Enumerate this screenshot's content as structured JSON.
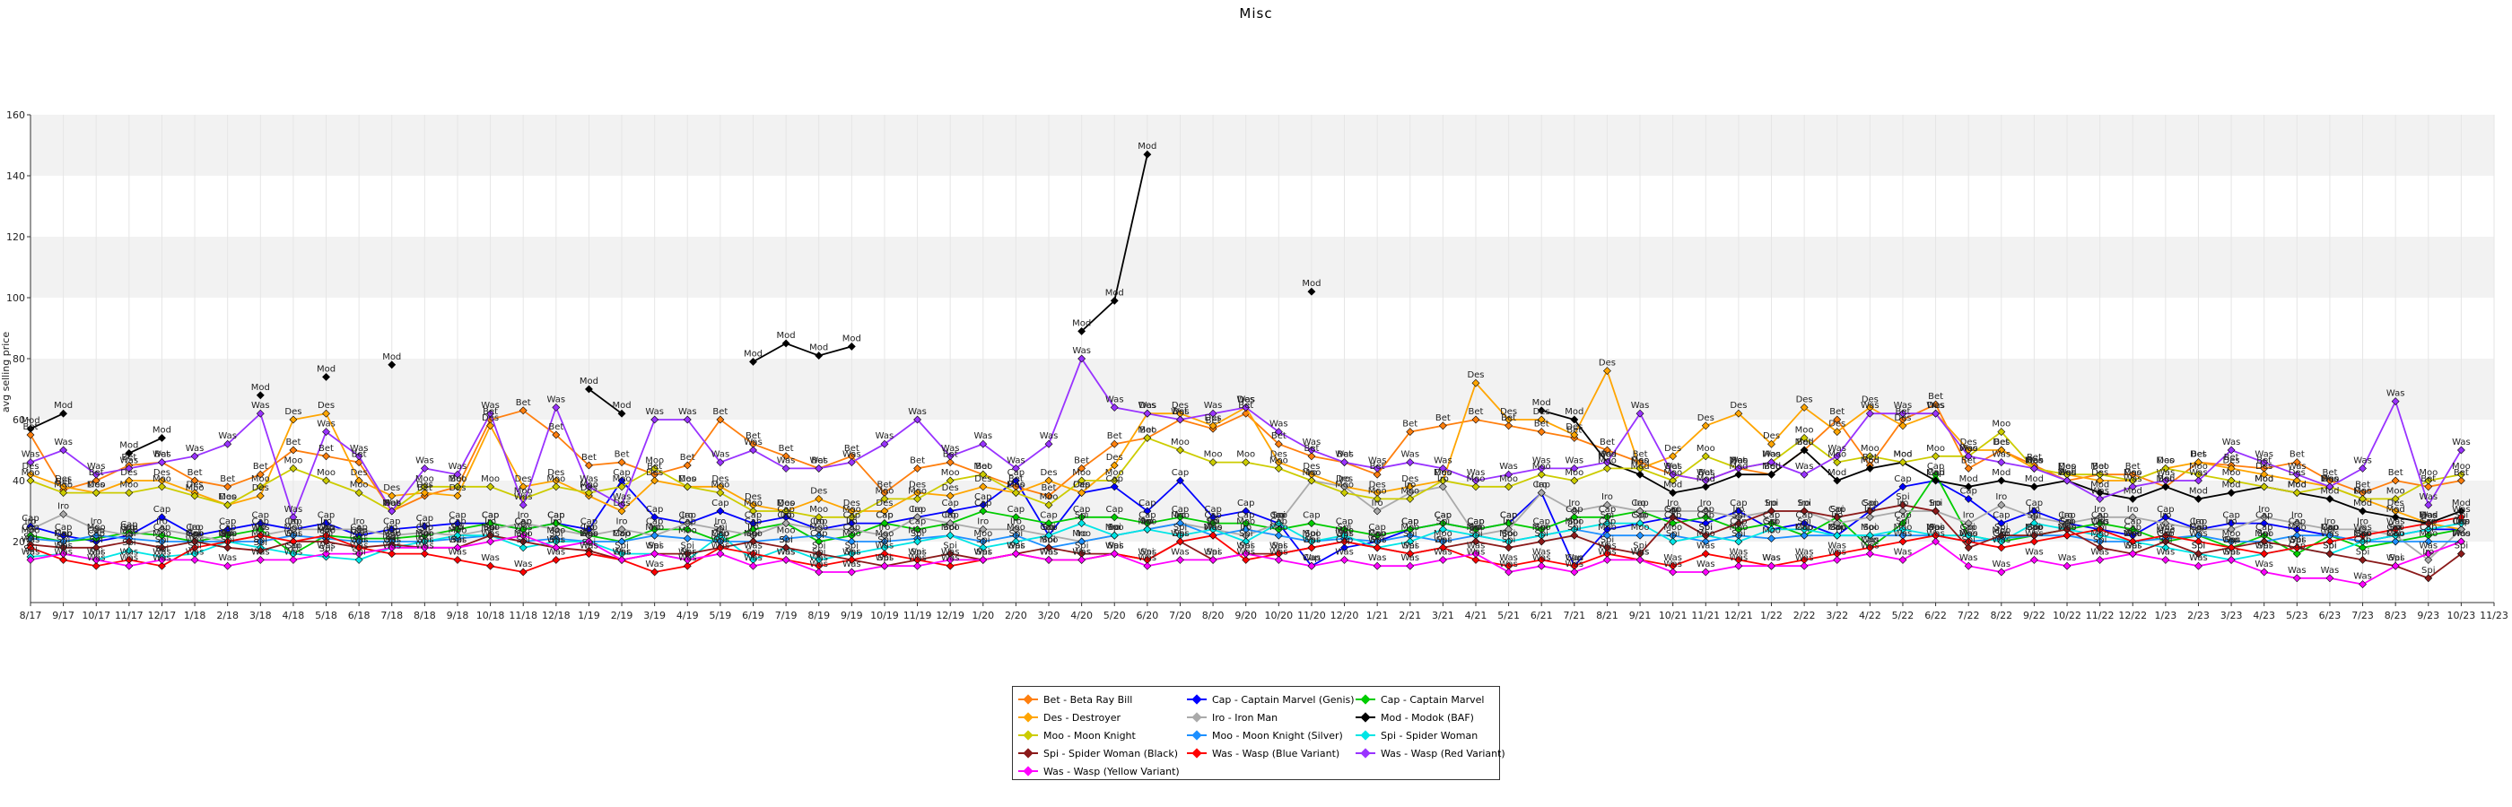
{
  "chart_data": {
    "type": "line",
    "title": "Misc",
    "xlabel": "",
    "ylabel": "avg selling price",
    "ylim": [
      0,
      160
    ],
    "yticks": [
      20,
      40,
      60,
      80,
      100,
      120,
      140,
      160
    ],
    "grid": true,
    "legend_position": "bottom-center",
    "categories": [
      "8/17",
      "9/17",
      "10/17",
      "11/17",
      "12/17",
      "1/18",
      "2/18",
      "3/18",
      "4/18",
      "5/18",
      "6/18",
      "7/18",
      "8/18",
      "9/18",
      "10/18",
      "11/18",
      "12/18",
      "1/19",
      "2/19",
      "3/19",
      "4/19",
      "5/19",
      "6/19",
      "7/19",
      "8/19",
      "9/19",
      "10/19",
      "11/19",
      "12/19",
      "1/20",
      "2/20",
      "3/20",
      "4/20",
      "5/20",
      "6/20",
      "7/20",
      "8/20",
      "9/20",
      "10/20",
      "11/20",
      "12/20",
      "1/21",
      "2/21",
      "3/21",
      "4/21",
      "5/21",
      "6/21",
      "7/21",
      "8/21",
      "9/21",
      "10/21",
      "11/21",
      "12/21",
      "1/22",
      "2/22",
      "3/22",
      "4/22",
      "5/22",
      "6/22",
      "7/22",
      "8/22",
      "9/22",
      "10/22",
      "11/22",
      "12/22",
      "1/23",
      "2/23",
      "3/23",
      "4/23",
      "5/23",
      "6/23",
      "7/23",
      "8/23",
      "9/23",
      "10/23",
      "11/23"
    ],
    "series": [
      {
        "name": "Bet - Beta Ray Bill",
        "code": "Bet",
        "color": "#ff7f0e",
        "values": [
          55,
          37,
          40,
          45,
          46,
          40,
          38,
          42,
          50,
          48,
          46,
          30,
          35,
          38,
          60,
          63,
          55,
          45,
          46,
          42,
          45,
          60,
          52,
          48,
          44,
          48,
          36,
          44,
          46,
          42,
          38,
          35,
          44,
          52,
          54,
          60,
          57,
          62,
          52,
          48,
          46,
          42,
          56,
          58,
          60,
          58,
          56,
          54,
          50,
          46,
          42,
          40,
          44,
          42,
          50,
          60,
          45,
          60,
          65,
          44,
          50,
          45,
          40,
          42,
          42,
          38,
          46,
          45,
          44,
          46,
          40,
          36,
          40,
          38,
          40,
          null
        ]
      },
      {
        "name": "Cap - Captain Marvel (Genis)",
        "code": "Cap",
        "color": "#0000ff",
        "values": [
          25,
          22,
          20,
          22,
          28,
          22,
          24,
          26,
          24,
          26,
          22,
          24,
          25,
          26,
          26,
          24,
          26,
          24,
          40,
          28,
          26,
          30,
          26,
          28,
          24,
          26,
          26,
          28,
          30,
          32,
          40,
          22,
          36,
          38,
          30,
          40,
          28,
          30,
          26,
          12,
          18,
          20,
          24,
          26,
          24,
          26,
          36,
          12,
          24,
          26,
          28,
          26,
          30,
          24,
          26,
          22,
          30,
          38,
          40,
          34,
          26,
          30,
          26,
          24,
          22,
          28,
          24,
          26,
          26,
          24,
          22,
          20,
          22,
          24,
          24,
          null
        ]
      },
      {
        "name": "Cap - Captain Marvel",
        "code": "Cap",
        "color": "#00cc00",
        "values": [
          22,
          20,
          21,
          23,
          22,
          20,
          22,
          24,
          16,
          22,
          21,
          21,
          22,
          24,
          26,
          24,
          26,
          22,
          20,
          24,
          24,
          20,
          24,
          26,
          20,
          22,
          26,
          24,
          26,
          30,
          28,
          26,
          28,
          28,
          26,
          28,
          26,
          26,
          24,
          26,
          24,
          22,
          24,
          26,
          24,
          26,
          24,
          28,
          28,
          30,
          26,
          28,
          24,
          26,
          22,
          28,
          18,
          26,
          42,
          22,
          20,
          22,
          24,
          26,
          24,
          20,
          22,
          18,
          22,
          16,
          22,
          18,
          20,
          22,
          24,
          null
        ]
      },
      {
        "name": "Des - Destroyer",
        "code": "Des",
        "color": "#ffa500",
        "values": [
          42,
          38,
          36,
          40,
          40,
          36,
          32,
          35,
          60,
          62,
          40,
          35,
          36,
          35,
          58,
          38,
          40,
          35,
          30,
          40,
          38,
          38,
          32,
          30,
          34,
          30,
          30,
          36,
          35,
          38,
          36,
          40,
          36,
          45,
          62,
          62,
          58,
          64,
          46,
          42,
          38,
          36,
          38,
          40,
          72,
          60,
          60,
          55,
          76,
          44,
          48,
          58,
          62,
          52,
          64,
          56,
          64,
          58,
          62,
          50,
          50,
          44,
          42,
          40,
          40,
          44,
          46,
          44,
          42,
          40,
          38,
          34,
          30,
          26,
          24,
          null
        ]
      },
      {
        "name": "Iro - Iron Man",
        "code": "Iro",
        "color": "#aaaaaa",
        "values": [
          24,
          29,
          24,
          22,
          24,
          22,
          20,
          22,
          24,
          24,
          24,
          22,
          23,
          22,
          24,
          26,
          24,
          22,
          24,
          22,
          26,
          24,
          22,
          26,
          24,
          24,
          22,
          28,
          26,
          24,
          24,
          22,
          20,
          22,
          24,
          26,
          24,
          22,
          26,
          40,
          38,
          30,
          36,
          38,
          22,
          24,
          36,
          30,
          32,
          30,
          30,
          30,
          28,
          30,
          30,
          26,
          28,
          30,
          30,
          26,
          32,
          28,
          26,
          28,
          28,
          26,
          24,
          24,
          28,
          26,
          24,
          24,
          22,
          14,
          24,
          null
        ]
      },
      {
        "name": "Mod - Modok (BAF)",
        "code": "Mod",
        "color": "#000000",
        "values": [
          57,
          62,
          null,
          49,
          54,
          null,
          null,
          68,
          null,
          74,
          null,
          78,
          null,
          null,
          null,
          null,
          null,
          70,
          62,
          null,
          null,
          null,
          79,
          85,
          81,
          84,
          null,
          null,
          null,
          null,
          null,
          null,
          89,
          99,
          147,
          null,
          null,
          null,
          null,
          102,
          null,
          null,
          null,
          null,
          null,
          null,
          63,
          60,
          46,
          42,
          36,
          38,
          42,
          42,
          50,
          40,
          44,
          46,
          40,
          38,
          40,
          38,
          40,
          36,
          34,
          38,
          34,
          36,
          38,
          36,
          34,
          30,
          28,
          26,
          30,
          null
        ]
      },
      {
        "name": "Moo - Moon Knight",
        "code": "Moo",
        "color": "#cccc00",
        "values": [
          40,
          36,
          36,
          36,
          38,
          35,
          32,
          38,
          44,
          40,
          36,
          30,
          38,
          38,
          38,
          34,
          38,
          36,
          38,
          44,
          38,
          36,
          30,
          30,
          28,
          28,
          34,
          34,
          40,
          42,
          36,
          32,
          40,
          40,
          54,
          50,
          46,
          46,
          44,
          40,
          36,
          34,
          34,
          40,
          38,
          38,
          42,
          40,
          44,
          44,
          40,
          48,
          44,
          46,
          54,
          46,
          48,
          46,
          48,
          48,
          56,
          44,
          42,
          42,
          40,
          44,
          42,
          40,
          38,
          36,
          38,
          34,
          34,
          40,
          42,
          null
        ]
      },
      {
        "name": "Moo - Moon Knight (Silver)",
        "code": "Moo",
        "color": "#1e90ff",
        "values": [
          21,
          20,
          22,
          21,
          20,
          20,
          20,
          20,
          22,
          21,
          20,
          20,
          20,
          21,
          22,
          20,
          21,
          20,
          20,
          22,
          21,
          20,
          20,
          21,
          22,
          20,
          20,
          21,
          22,
          20,
          22,
          18,
          20,
          22,
          24,
          26,
          22,
          24,
          22,
          20,
          21,
          20,
          22,
          20,
          22,
          20,
          22,
          24,
          22,
          22,
          22,
          20,
          22,
          21,
          22,
          22,
          22,
          22,
          22,
          20,
          21,
          22,
          22,
          20,
          20,
          21,
          22,
          20,
          20,
          22,
          22,
          20,
          20,
          20,
          20,
          null
        ]
      },
      {
        "name": "Spi - Spider Woman",
        "code": "Spi",
        "color": "#00e5e5",
        "values": [
          15,
          16,
          14,
          17,
          15,
          16,
          20,
          18,
          16,
          15,
          14,
          18,
          20,
          22,
          22,
          18,
          20,
          20,
          16,
          16,
          14,
          22,
          14,
          18,
          14,
          16,
          18,
          20,
          22,
          18,
          20,
          22,
          26,
          22,
          24,
          22,
          24,
          20,
          26,
          20,
          22,
          18,
          20,
          24,
          22,
          20,
          22,
          24,
          26,
          26,
          20,
          22,
          20,
          24,
          24,
          22,
          22,
          24,
          22,
          22,
          20,
          26,
          24,
          22,
          20,
          18,
          16,
          14,
          16,
          18,
          16,
          20,
          22,
          24,
          26,
          null
        ]
      },
      {
        "name": "Spi - Spider Woman (Black)",
        "code": "Spi",
        "color": "#8b1a1a",
        "values": [
          19,
          18,
          18,
          20,
          18,
          20,
          18,
          17,
          20,
          20,
          18,
          19,
          18,
          18,
          22,
          20,
          18,
          17,
          14,
          16,
          16,
          18,
          20,
          18,
          16,
          14,
          12,
          14,
          16,
          14,
          16,
          18,
          16,
          16,
          14,
          20,
          14,
          16,
          16,
          18,
          20,
          18,
          16,
          18,
          20,
          18,
          20,
          22,
          18,
          16,
          28,
          22,
          26,
          30,
          30,
          28,
          30,
          32,
          30,
          18,
          22,
          22,
          24,
          18,
          16,
          20,
          16,
          18,
          20,
          18,
          16,
          14,
          12,
          8,
          16,
          null
        ]
      },
      {
        "name": "Was - Wasp (Blue Variant)",
        "code": "Was",
        "color": "#ff0000",
        "values": [
          18,
          14,
          12,
          14,
          12,
          18,
          20,
          22,
          20,
          22,
          18,
          16,
          16,
          14,
          12,
          10,
          14,
          16,
          14,
          10,
          12,
          18,
          16,
          14,
          12,
          14,
          16,
          14,
          12,
          14,
          16,
          14,
          14,
          16,
          14,
          20,
          22,
          14,
          16,
          18,
          20,
          18,
          16,
          18,
          14,
          12,
          14,
          12,
          16,
          14,
          12,
          16,
          14,
          12,
          14,
          16,
          18,
          20,
          22,
          20,
          18,
          20,
          22,
          24,
          20,
          22,
          20,
          18,
          16,
          18,
          20,
          22,
          24,
          26,
          28,
          null
        ]
      },
      {
        "name": "Was - Wasp (Red Variant)",
        "code": "Was",
        "color": "#9933ff",
        "values": [
          46,
          50,
          42,
          44,
          46,
          48,
          52,
          62,
          28,
          56,
          48,
          30,
          44,
          42,
          62,
          32,
          64,
          38,
          32,
          60,
          60,
          46,
          50,
          44,
          44,
          46,
          52,
          60,
          48,
          52,
          44,
          52,
          80,
          64,
          62,
          60,
          62,
          64,
          56,
          50,
          46,
          44,
          46,
          44,
          40,
          42,
          44,
          44,
          46,
          62,
          42,
          40,
          44,
          46,
          42,
          48,
          62,
          62,
          62,
          48,
          46,
          44,
          40,
          34,
          38,
          40,
          40,
          50,
          46,
          42,
          38,
          44,
          66,
          32,
          50,
          null
        ]
      },
      {
        "name": "Was - Wasp (Yellow Variant)",
        "code": "Was",
        "color": "#ff00ff",
        "values": [
          14,
          16,
          14,
          12,
          14,
          14,
          12,
          14,
          14,
          16,
          16,
          18,
          18,
          18,
          20,
          22,
          18,
          20,
          14,
          16,
          14,
          16,
          12,
          14,
          10,
          10,
          12,
          12,
          14,
          14,
          16,
          14,
          14,
          16,
          12,
          14,
          14,
          16,
          14,
          12,
          14,
          12,
          12,
          14,
          16,
          10,
          12,
          10,
          14,
          14,
          10,
          10,
          12,
          12,
          12,
          14,
          16,
          14,
          20,
          12,
          10,
          14,
          12,
          14,
          16,
          14,
          12,
          14,
          10,
          8,
          8,
          6,
          12,
          16,
          20,
          null
        ]
      }
    ]
  }
}
